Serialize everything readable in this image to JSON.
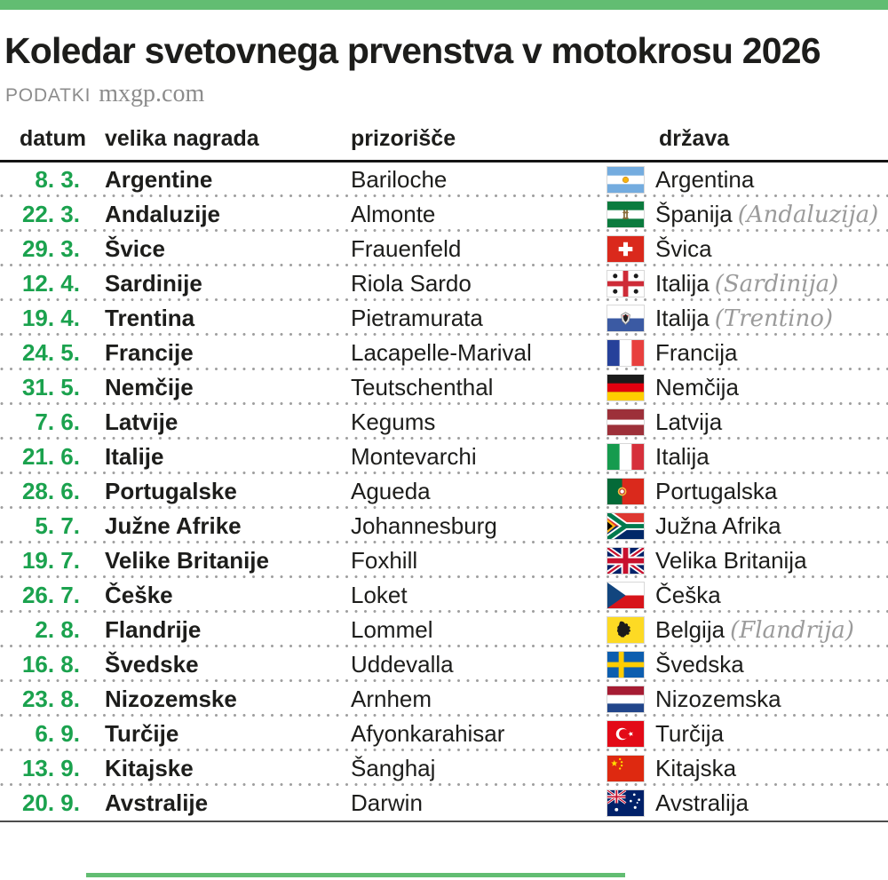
{
  "header": {
    "title": "Koledar svetovnega prvenstva v motokrosu 2026",
    "source_label": "PODATKI",
    "source_value": "mxgp.com"
  },
  "colors": {
    "accent_green": "#62bd72",
    "date_green": "#1ba24e",
    "text_dark": "#1d1d1b",
    "muted_gray": "#8c8c8c",
    "region_gray": "#9b9b9b"
  },
  "table": {
    "columns": [
      {
        "label": "datum"
      },
      {
        "label": "velika nagrada"
      },
      {
        "label": "prizorišče"
      },
      {
        "label": "država"
      }
    ],
    "rows": [
      {
        "date": "8. 3.",
        "gp": "Argentine",
        "venue": "Bariloche",
        "flag": "argentina",
        "country": "Argentina",
        "region": ""
      },
      {
        "date": "22. 3.",
        "gp": "Andaluzije",
        "venue": "Almonte",
        "flag": "andalusia",
        "country": "Španija",
        "region": "(Andaluzija)"
      },
      {
        "date": "29. 3.",
        "gp": "Švice",
        "venue": "Frauenfeld",
        "flag": "switzerland",
        "country": "Švica",
        "region": ""
      },
      {
        "date": "12. 4.",
        "gp": "Sardinije",
        "venue": "Riola Sardo",
        "flag": "sardinia",
        "country": "Italija",
        "region": "(Sardinija)"
      },
      {
        "date": "19. 4.",
        "gp": "Trentina",
        "venue": "Pietramurata",
        "flag": "trentino",
        "country": "Italija",
        "region": "(Trentino)"
      },
      {
        "date": "24. 5.",
        "gp": "Francije",
        "venue": "Lacapelle-Marival",
        "flag": "france",
        "country": "Francija",
        "region": ""
      },
      {
        "date": "31. 5.",
        "gp": "Nemčije",
        "venue": "Teutschenthal",
        "flag": "germany",
        "country": "Nemčija",
        "region": ""
      },
      {
        "date": "7. 6.",
        "gp": "Latvije",
        "venue": "Kegums",
        "flag": "latvia",
        "country": "Latvija",
        "region": ""
      },
      {
        "date": "21. 6.",
        "gp": "Italije",
        "venue": "Montevarchi",
        "flag": "italy",
        "country": "Italija",
        "region": ""
      },
      {
        "date": "28. 6.",
        "gp": "Portugalske",
        "venue": "Agueda",
        "flag": "portugal",
        "country": "Portugalska",
        "region": ""
      },
      {
        "date": "5. 7.",
        "gp": "Južne Afrike",
        "venue": "Johannesburg",
        "flag": "south-africa",
        "country": "Južna Afrika",
        "region": ""
      },
      {
        "date": "19. 7.",
        "gp": "Velike Britanije",
        "venue": "Foxhill",
        "flag": "great-britain",
        "country": "Velika Britanija",
        "region": ""
      },
      {
        "date": "26. 7.",
        "gp": "Češke",
        "venue": "Loket",
        "flag": "czechia",
        "country": "Češka",
        "region": ""
      },
      {
        "date": "2. 8.",
        "gp": "Flandrije",
        "venue": "Lommel",
        "flag": "flanders",
        "country": "Belgija",
        "region": "(Flandrija)"
      },
      {
        "date": "16. 8.",
        "gp": "Švedske",
        "venue": "Uddevalla",
        "flag": "sweden",
        "country": "Švedska",
        "region": ""
      },
      {
        "date": "23. 8.",
        "gp": "Nizozemske",
        "venue": "Arnhem",
        "flag": "netherlands",
        "country": "Nizozemska",
        "region": ""
      },
      {
        "date": "6. 9.",
        "gp": "Turčije",
        "venue": "Afyonkarahisar",
        "flag": "turkey",
        "country": "Turčija",
        "region": ""
      },
      {
        "date": "13. 9.",
        "gp": "Kitajske",
        "venue": "Šanghaj",
        "flag": "china",
        "country": "Kitajska",
        "region": ""
      },
      {
        "date": "20. 9.",
        "gp": "Avstralije",
        "venue": "Darwin",
        "flag": "australia",
        "country": "Avstralija",
        "region": ""
      }
    ]
  },
  "chart_data": {
    "type": "table",
    "title": "Koledar svetovnega prvenstva v motokrosu 2026",
    "source": "PODATKI mxgp.com",
    "columns": [
      "datum",
      "velika nagrada",
      "prizorišče",
      "država"
    ],
    "rows": [
      [
        "8. 3.",
        "Argentine",
        "Bariloche",
        "Argentina"
      ],
      [
        "22. 3.",
        "Andaluzije",
        "Almonte",
        "Španija (Andaluzija)"
      ],
      [
        "29. 3.",
        "Švice",
        "Frauenfeld",
        "Švica"
      ],
      [
        "12. 4.",
        "Sardinije",
        "Riola Sardo",
        "Italija (Sardinija)"
      ],
      [
        "19. 4.",
        "Trentina",
        "Pietramurata",
        "Italija (Trentino)"
      ],
      [
        "24. 5.",
        "Francije",
        "Lacapelle-Marival",
        "Francija"
      ],
      [
        "31. 5.",
        "Nemčije",
        "Teutschenthal",
        "Nemčija"
      ],
      [
        "7. 6.",
        "Latvije",
        "Kegums",
        "Latvija"
      ],
      [
        "21. 6.",
        "Italije",
        "Montevarchi",
        "Italija"
      ],
      [
        "28. 6.",
        "Portugalske",
        "Agueda",
        "Portugalska"
      ],
      [
        "5. 7.",
        "Južne Afrike",
        "Johannesburg",
        "Južna Afrika"
      ],
      [
        "19. 7.",
        "Velike Britanije",
        "Foxhill",
        "Velika Britanija"
      ],
      [
        "26. 7.",
        "Češke",
        "Loket",
        "Češka"
      ],
      [
        "2. 8.",
        "Flandrije",
        "Lommel",
        "Belgija (Flandrija)"
      ],
      [
        "16. 8.",
        "Švedske",
        "Uddevalla",
        "Švedska"
      ],
      [
        "23. 8.",
        "Nizozemske",
        "Arnhem",
        "Nizozemska"
      ],
      [
        "6. 9.",
        "Turčije",
        "Afyonkarahisar",
        "Turčija"
      ],
      [
        "13. 9.",
        "Kitajske",
        "Šanghaj",
        "Kitajska"
      ],
      [
        "20. 9.",
        "Avstralije",
        "Darwin",
        "Avstralija"
      ]
    ]
  }
}
